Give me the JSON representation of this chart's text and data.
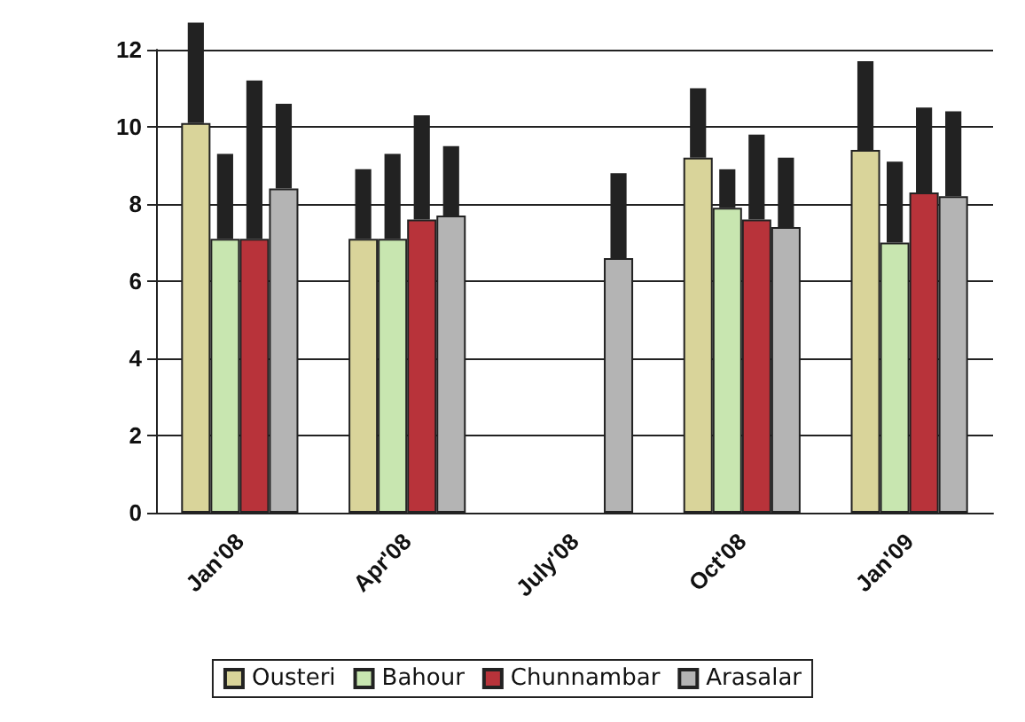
{
  "chart_data": {
    "type": "bar",
    "categories": [
      "Jan'08",
      "Apr'08",
      "July'08",
      "Oct'08",
      "Jan'09"
    ],
    "series": [
      {
        "name": "Ousteri",
        "color": "#d9d49a",
        "values": [
          10.1,
          7.1,
          null,
          9.2,
          9.4
        ],
        "errors": [
          [
            10.1,
            12.7
          ],
          [
            7.1,
            8.9
          ],
          null,
          [
            9.2,
            11.0
          ],
          [
            9.4,
            11.7
          ]
        ]
      },
      {
        "name": "Bahour",
        "color": "#c8e6b0",
        "values": [
          7.1,
          7.1,
          null,
          7.9,
          7.0
        ],
        "errors": [
          [
            7.1,
            9.3
          ],
          [
            7.1,
            9.3
          ],
          null,
          [
            7.9,
            8.9
          ],
          [
            7.0,
            9.1
          ]
        ]
      },
      {
        "name": "Chunnambar",
        "color": "#b8333a",
        "values": [
          7.1,
          7.6,
          null,
          7.6,
          8.3
        ],
        "errors": [
          [
            7.1,
            11.2
          ],
          [
            7.6,
            10.3
          ],
          null,
          [
            7.6,
            9.8
          ],
          [
            8.3,
            10.5
          ]
        ]
      },
      {
        "name": "Arasalar",
        "color": "#b4b4b4",
        "values": [
          8.4,
          7.7,
          6.6,
          7.4,
          8.2
        ],
        "errors": [
          [
            8.4,
            10.6
          ],
          [
            7.7,
            9.5
          ],
          [
            6.6,
            8.8
          ],
          [
            7.4,
            9.2
          ],
          [
            8.2,
            10.4
          ]
        ]
      }
    ],
    "ylim": [
      0,
      12
    ],
    "yticks": [
      0,
      2,
      4,
      6,
      8,
      10,
      12
    ],
    "grid": "y",
    "legend": "bottom"
  }
}
